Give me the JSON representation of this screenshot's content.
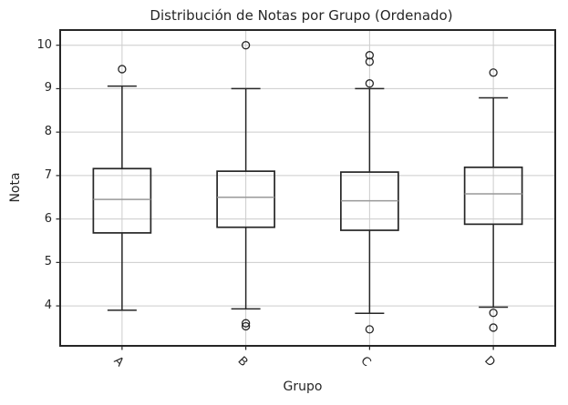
{
  "chart_data": {
    "type": "boxplot",
    "title": "Distribución de Notas por Grupo (Ordenado)",
    "xlabel": "Grupo",
    "ylabel": "Nota",
    "categories": [
      "A",
      "B",
      "C",
      "D"
    ],
    "y_ticks": [
      4,
      5,
      6,
      7,
      8,
      9,
      10
    ],
    "ylim": [
      3.08,
      10.35
    ],
    "grid": true,
    "legend": false,
    "x_tick_rotation_deg": 45,
    "groups": [
      {
        "label": "A",
        "whisker_low": 3.9,
        "q1": 5.68,
        "median": 6.45,
        "q3": 7.16,
        "whisker_high": 9.06,
        "outliers": [
          9.45
        ]
      },
      {
        "label": "B",
        "whisker_low": 3.93,
        "q1": 5.81,
        "median": 6.5,
        "q3": 7.1,
        "whisker_high": 9.0,
        "outliers": [
          10.0,
          3.6,
          3.53
        ]
      },
      {
        "label": "C",
        "whisker_low": 3.83,
        "q1": 5.74,
        "median": 6.42,
        "q3": 7.08,
        "whisker_high": 9.0,
        "outliers": [
          9.77,
          9.62,
          9.12,
          3.46
        ]
      },
      {
        "label": "D",
        "whisker_low": 3.97,
        "q1": 5.88,
        "median": 6.58,
        "q3": 7.19,
        "whisker_high": 8.79,
        "outliers": [
          9.37,
          3.84,
          3.5
        ]
      }
    ],
    "colors": {
      "box_edge": "#262626",
      "median": "#999999",
      "grid": "#cccccc",
      "spine": "#262626",
      "background": "#ffffff",
      "text": "#262626"
    }
  }
}
